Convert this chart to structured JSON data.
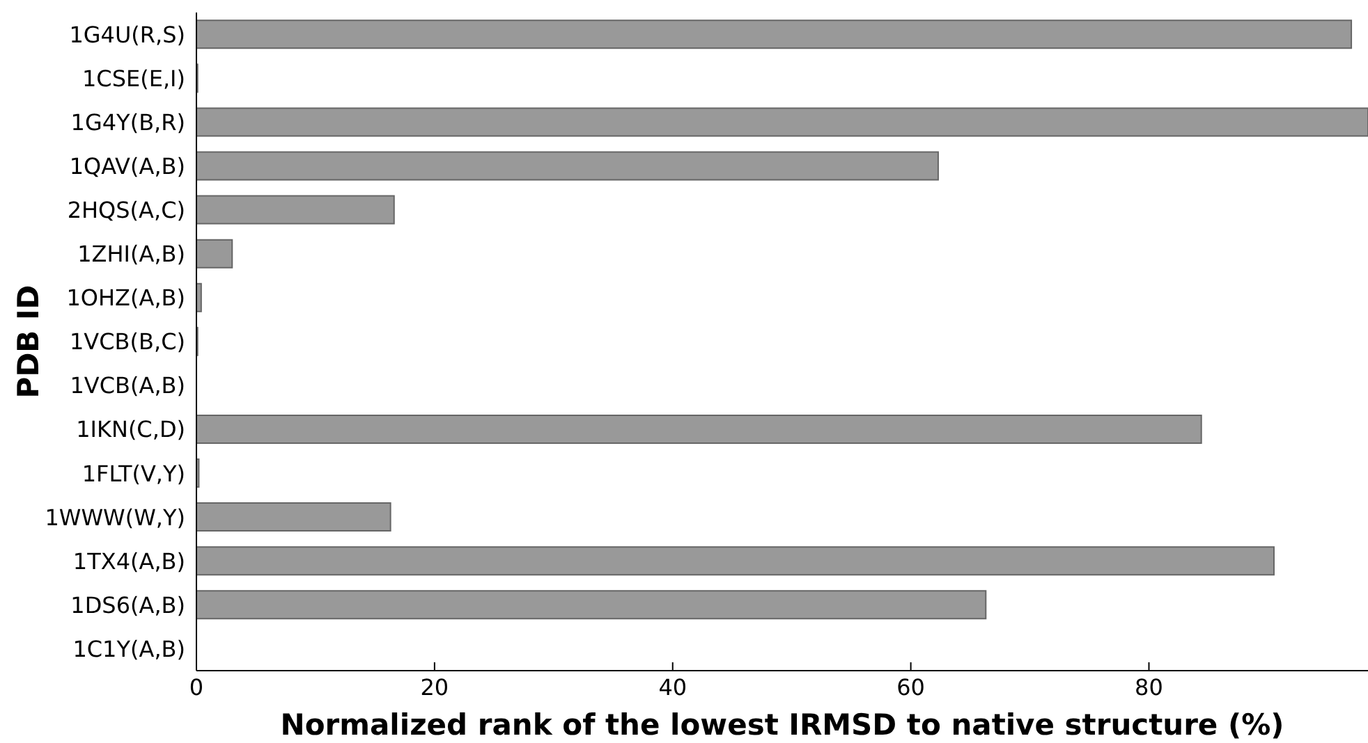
{
  "chart_data": {
    "type": "bar",
    "orientation": "horizontal",
    "xlabel": "Normalized rank of the lowest IRMSD to native structure (%)",
    "ylabel": "PDB ID",
    "categories": [
      "1G4U(R,S)",
      "1CSE(E,I)",
      "1G4Y(B,R)",
      "1QAV(A,B)",
      "2HQS(A,C)",
      "1ZHI(A,B)",
      "1OHZ(A,B)",
      "1VCB(B,C)",
      "1VCB(A,B)",
      "1IKN(C,D)",
      "1FLT(V,Y)",
      "1WWW(W,Y)",
      "1TX4(A,B)",
      "1DS6(A,B)",
      "1C1Y(A,B)"
    ],
    "values": [
      97.0,
      0.1,
      98.4,
      62.3,
      16.6,
      3.0,
      0.4,
      0.1,
      0,
      84.4,
      0.2,
      16.3,
      90.5,
      66.3,
      0
    ],
    "color": "#999999",
    "xlim": [
      0,
      98.4
    ],
    "xticks": [
      0,
      20,
      40,
      60,
      80
    ]
  }
}
